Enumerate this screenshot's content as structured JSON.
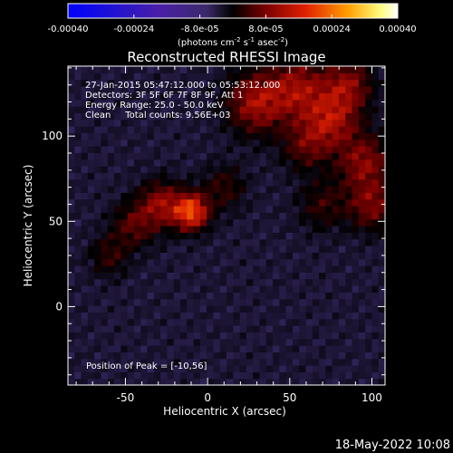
{
  "chart_data": {
    "type": "heatmap",
    "title": "Reconstructed RHESSI Image",
    "colorbar": {
      "ticks": [
        "-0.00040",
        "-0.00024",
        "-8.0e-05",
        "8.0e-05",
        "0.00024",
        "0.00040"
      ],
      "tick_values": [
        -0.0004,
        -0.00024,
        -8e-05,
        8e-05,
        0.00024,
        0.0004
      ],
      "unit_label": "(photons cm",
      "unit_sup1": "-2",
      "unit_mid": " s",
      "unit_sup2": "-1",
      "unit_mid2": " asec",
      "unit_sup3": "-2",
      "unit_end": ")",
      "range": [
        -0.0004,
        0.0004
      ]
    },
    "xlabel": "Heliocentric X (arcsec)",
    "ylabel": "Heliocentric Y (arcsec)",
    "xlim": [
      -85,
      108
    ],
    "ylim": [
      -46,
      141
    ],
    "x_ticks": [
      -50,
      0,
      50,
      100
    ],
    "y_ticks": [
      0,
      50,
      100
    ],
    "peak": [
      -10,
      56
    ],
    "annotations": [
      "27-Jan-2015 05:47:12.000 to 05:53:12.000",
      "Detectors: 3F 5F 6F 7F 8F 9F, Att 1",
      "Energy Range: 25.0 - 50.0 keV",
      "Clean     Total counts: 9.56E+03"
    ],
    "peak_label": "Position of Peak = [-10,56]",
    "sources": [
      {
        "x": -10,
        "y": 56,
        "amp": 1.0,
        "sigma": 7
      },
      {
        "x": -28,
        "y": 60,
        "amp": 0.55,
        "sigma": 9
      },
      {
        "x": -45,
        "y": 48,
        "amp": 0.35,
        "sigma": 9
      },
      {
        "x": 30,
        "y": 120,
        "amp": 0.6,
        "sigma": 12
      },
      {
        "x": 55,
        "y": 128,
        "amp": 0.55,
        "sigma": 12
      },
      {
        "x": 75,
        "y": 110,
        "amp": 0.6,
        "sigma": 11
      },
      {
        "x": 95,
        "y": 85,
        "amp": 0.5,
        "sigma": 11
      },
      {
        "x": 100,
        "y": 60,
        "amp": 0.45,
        "sigma": 10
      },
      {
        "x": 85,
        "y": 130,
        "amp": 0.5,
        "sigma": 10
      },
      {
        "x": 60,
        "y": 95,
        "amp": 0.35,
        "sigma": 10
      },
      {
        "x": 10,
        "y": 70,
        "amp": 0.25,
        "sigma": 9
      },
      {
        "x": 70,
        "y": 60,
        "amp": 0.25,
        "sigma": 10
      },
      {
        "x": -60,
        "y": 30,
        "amp": 0.25,
        "sigma": 8
      }
    ]
  },
  "timestamp": "18-May-2022 10:08"
}
